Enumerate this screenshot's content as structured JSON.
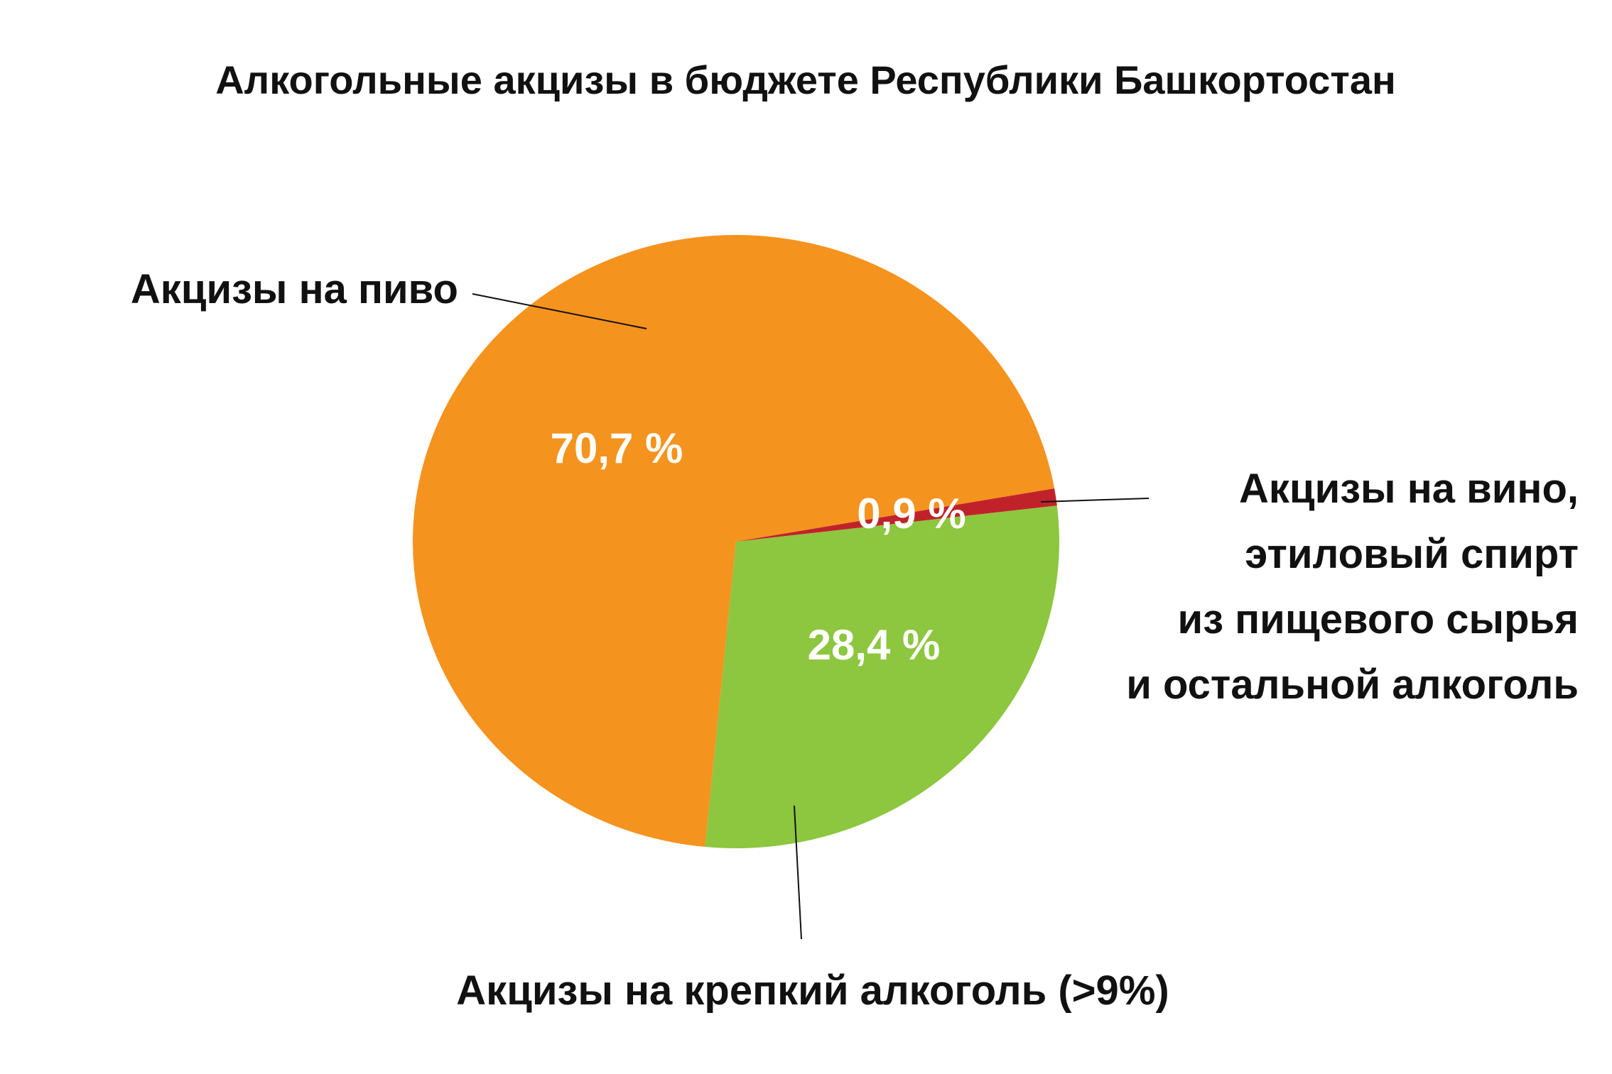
{
  "chart_data": {
    "type": "pie",
    "title": "Алкогольные акцизы в бюджете Республики Башкортостан",
    "slices": [
      {
        "label_lines": [
          "Акцизы на пиво"
        ],
        "value": 70.7,
        "value_label": "70,7 %",
        "color": "#f5931f"
      },
      {
        "label_lines": [
          "Акцизы на вино,",
          "этиловый спирт",
          "из пищевого сырья",
          "и остальной алкоголь"
        ],
        "value": 0.9,
        "value_label": "0,9 %",
        "color": "#c1222a"
      },
      {
        "label_lines": [
          "Акцизы на крепкий алкоголь (>9%)"
        ],
        "value": 28.4,
        "value_label": "28,4 %",
        "color": "#8dc63f"
      }
    ],
    "legend": "none"
  }
}
